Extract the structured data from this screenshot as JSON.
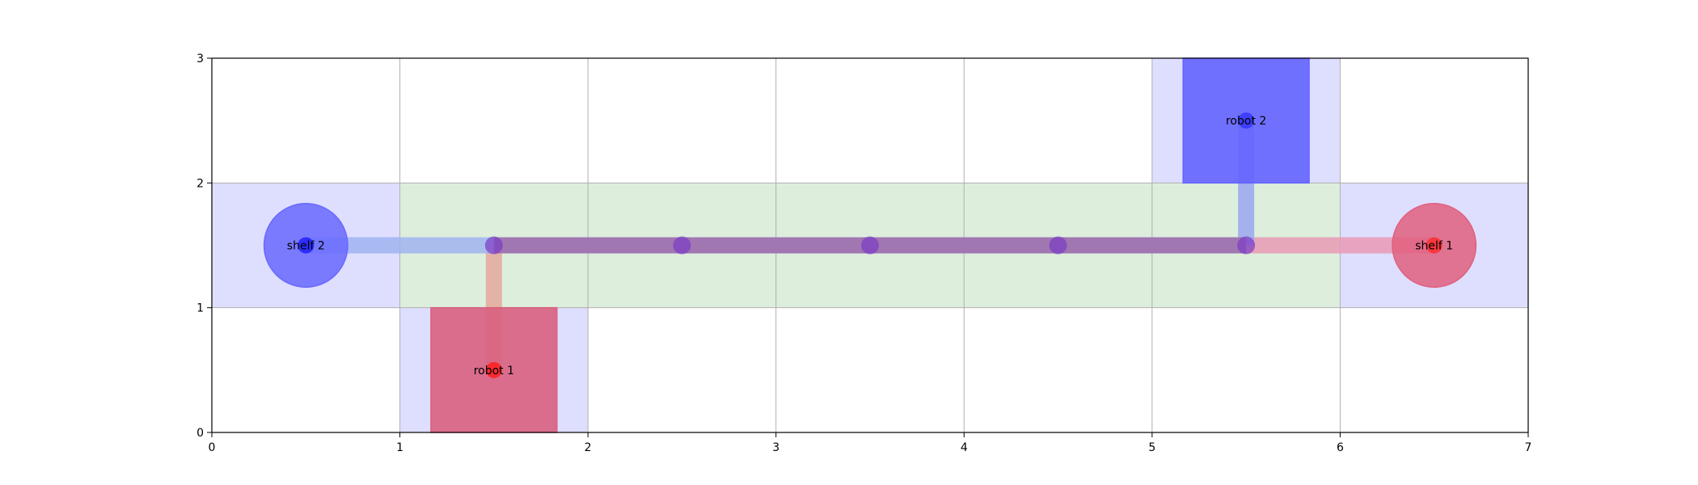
{
  "chart_data": {
    "type": "grid-map",
    "xlim": [
      0,
      7
    ],
    "ylim": [
      0,
      3
    ],
    "grid": true,
    "x_ticks": [
      "0",
      "1",
      "2",
      "3",
      "4",
      "5",
      "6",
      "7"
    ],
    "y_ticks": [
      "0",
      "1",
      "2",
      "3"
    ],
    "cells": [
      {
        "x": 0,
        "y": 1,
        "kind": "zone",
        "color": "#dedeff"
      },
      {
        "x": 1,
        "y": 0,
        "kind": "zone",
        "color": "#dedeff"
      },
      {
        "x": 5,
        "y": 2,
        "kind": "zone",
        "color": "#dedeff"
      },
      {
        "x": 6,
        "y": 1,
        "kind": "zone",
        "color": "#dedeff"
      },
      {
        "x": 1,
        "y": 1,
        "kind": "corridor",
        "color": "#ddeedd"
      },
      {
        "x": 2,
        "y": 1,
        "kind": "corridor",
        "color": "#ddeedd"
      },
      {
        "x": 3,
        "y": 1,
        "kind": "corridor",
        "color": "#ddeedd"
      },
      {
        "x": 4,
        "y": 1,
        "kind": "corridor",
        "color": "#ddeedd"
      },
      {
        "x": 5,
        "y": 1,
        "kind": "corridor",
        "color": "#ddeedd"
      }
    ],
    "paths": [
      {
        "robot": "robot 1",
        "color_start": "#e4a89c",
        "color_end": "#e89ab5",
        "points": [
          [
            1.5,
            0.5
          ],
          [
            1.5,
            1.5
          ],
          [
            2.5,
            1.5
          ],
          [
            3.5,
            1.5
          ],
          [
            4.5,
            1.5
          ],
          [
            5.5,
            1.5
          ],
          [
            6.5,
            1.5
          ]
        ]
      },
      {
        "robot": "robot 2",
        "color_start": "#9aa6ee",
        "color_end": "#a0b4f0",
        "points": [
          [
            5.5,
            2.5
          ],
          [
            5.5,
            1.5
          ],
          [
            4.5,
            1.5
          ],
          [
            3.5,
            1.5
          ],
          [
            2.5,
            1.5
          ],
          [
            1.5,
            1.5
          ],
          [
            0.5,
            1.5
          ]
        ]
      }
    ],
    "overlap_color": "#a070ac",
    "waypoints": [
      {
        "x": 1.5,
        "y": 1.5
      },
      {
        "x": 2.5,
        "y": 1.5
      },
      {
        "x": 3.5,
        "y": 1.5
      },
      {
        "x": 4.5,
        "y": 1.5
      },
      {
        "x": 5.5,
        "y": 1.5
      }
    ],
    "waypoint_color": "#7a3cc4",
    "robots": [
      {
        "label": "robot 1",
        "x": 1.5,
        "y": 0.5,
        "color": "#d8607e",
        "dot_color": "#ff1a1a"
      },
      {
        "label": "robot 2",
        "x": 5.5,
        "y": 2.5,
        "color": "#6464ff",
        "dot_color": "#3333ff"
      }
    ],
    "shelves": [
      {
        "label": "shelf 1",
        "x": 6.5,
        "y": 1.5,
        "color": "#e0607e",
        "dot_color": "#ff2a2a"
      },
      {
        "label": "shelf 2",
        "x": 0.5,
        "y": 1.5,
        "color": "#6868ff",
        "dot_color": "#1a1aff"
      }
    ]
  }
}
